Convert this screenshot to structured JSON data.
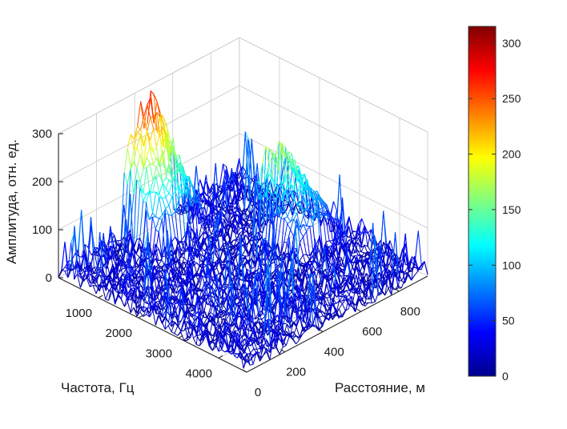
{
  "chart_data": {
    "type": "surface-3d",
    "title": "",
    "xlabel": "Частота, Гц",
    "ylabel": "Расстояние, м",
    "zlabel": "Амплитуда, отн. ед.",
    "xlim": [
      0,
      4700
    ],
    "ylim": [
      0,
      950
    ],
    "zlim": [
      0,
      300
    ],
    "x_ticks": [
      "1000",
      "2000",
      "3000",
      "4000"
    ],
    "x_tick_values": [
      1000,
      2000,
      3000,
      4000
    ],
    "y_ticks": [
      "0",
      "200",
      "400",
      "600",
      "800"
    ],
    "y_tick_values": [
      0,
      200,
      400,
      600,
      800
    ],
    "z_ticks": [
      "0",
      "100",
      "200",
      "300"
    ],
    "z_tick_values": [
      0,
      100,
      200,
      300
    ],
    "colormap": "jet",
    "colorbar": {
      "min": 0,
      "max": 315,
      "ticks": [
        "0",
        "50",
        "100",
        "150",
        "200",
        "250",
        "300"
      ],
      "tick_values": [
        0,
        50,
        100,
        150,
        200,
        250,
        300
      ]
    },
    "grid": true,
    "peaks": [
      {
        "x_range": [
          0,
          900
        ],
        "y_range": [
          330,
          590
        ],
        "max_amplitude": 300
      },
      {
        "x_range": [
          1600,
          2800
        ],
        "y_range": [
          680,
          900
        ],
        "max_amplitude": 215
      }
    ],
    "noise_floor_amplitude": 40
  }
}
